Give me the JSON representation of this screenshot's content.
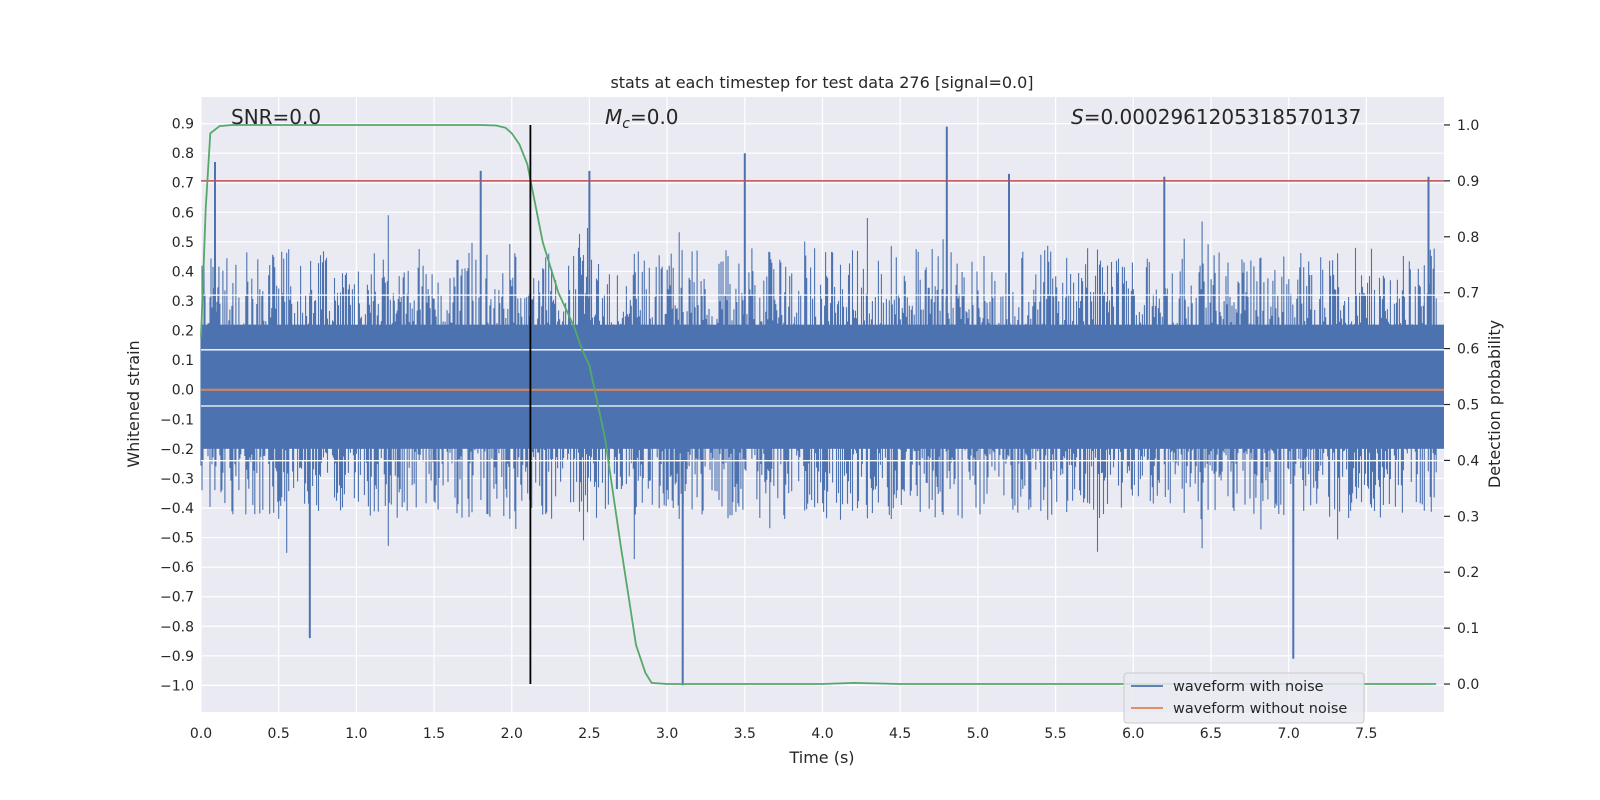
{
  "chart_data": {
    "type": "line",
    "title": "stats at each timestep for test data 276 [signal=0.0]",
    "xlabel": "Time (s)",
    "ylabel": "Whitened strain",
    "y2label": "Detection probability",
    "xlim": [
      0.0,
      8.0
    ],
    "ylim": [
      -1.09,
      0.99
    ],
    "y2lim": [
      -0.05,
      1.05
    ],
    "xticks": [
      "0.0",
      "0.5",
      "1.0",
      "1.5",
      "2.0",
      "2.5",
      "3.0",
      "3.5",
      "4.0",
      "4.5",
      "5.0",
      "5.5",
      "6.0",
      "6.5",
      "7.0",
      "7.5"
    ],
    "xtick_values": [
      0.0,
      0.5,
      1.0,
      1.5,
      2.0,
      2.5,
      3.0,
      3.5,
      4.0,
      4.5,
      5.0,
      5.5,
      6.0,
      6.5,
      7.0,
      7.5
    ],
    "yticks": [
      "0.9",
      "0.8",
      "0.7",
      "0.6",
      "0.5",
      "0.4",
      "0.3",
      "0.2",
      "0.1",
      "0.0",
      "−0.1",
      "−0.2",
      "−0.3",
      "−0.4",
      "−0.5",
      "−0.6",
      "−0.7",
      "−0.8",
      "−0.9",
      "−1.0"
    ],
    "ytick_values": [
      0.9,
      0.8,
      0.7,
      0.6,
      0.5,
      0.4,
      0.3,
      0.2,
      0.1,
      0.0,
      -0.1,
      -0.2,
      -0.3,
      -0.4,
      -0.5,
      -0.6,
      -0.7,
      -0.8,
      -0.9,
      -1.0
    ],
    "y2ticks": [
      "1.0",
      "0.9",
      "0.8",
      "0.7",
      "0.6",
      "0.5",
      "0.4",
      "0.3",
      "0.2",
      "0.1",
      "0.0"
    ],
    "y2tick_values": [
      1.0,
      0.9,
      0.8,
      0.7,
      0.6,
      0.5,
      0.4,
      0.3,
      0.2,
      0.1,
      0.0
    ],
    "annotations": {
      "snr": "SNR=0.0",
      "mc_symbol": "M",
      "mc_sub": "c",
      "mc_value": "=0.0",
      "s_symbol": "S",
      "s_value": "=0.0002961205318570137"
    },
    "series": [
      {
        "name": "waveform with noise",
        "color": "#4c72b0",
        "description": "dense whitened noise, roughly within ±0.5 with spikes",
        "spikes": [
          {
            "x": 0.09,
            "y": 0.77
          },
          {
            "x": 0.7,
            "y": -0.84
          },
          {
            "x": 1.8,
            "y": 0.74
          },
          {
            "x": 2.5,
            "y": 0.74
          },
          {
            "x": 3.1,
            "y": -1.0
          },
          {
            "x": 3.5,
            "y": 0.8
          },
          {
            "x": 4.8,
            "y": 0.89
          },
          {
            "x": 5.2,
            "y": 0.73
          },
          {
            "x": 6.2,
            "y": 0.72
          },
          {
            "x": 7.03,
            "y": -0.91
          },
          {
            "x": 7.9,
            "y": 0.72
          }
        ]
      },
      {
        "name": "waveform without noise",
        "color": "#dd8452",
        "y": 0.0
      },
      {
        "name": "detection probability",
        "color": "#55a868",
        "axis": "right",
        "x": [
          0.0,
          0.03,
          0.06,
          0.12,
          0.2,
          0.5,
          1.0,
          1.5,
          1.8,
          1.9,
          1.96,
          2.0,
          2.05,
          2.1,
          2.2,
          2.3,
          2.4,
          2.45,
          2.5,
          2.6,
          2.7,
          2.75,
          2.8,
          2.86,
          2.9,
          3.0,
          3.5,
          4.0,
          4.2,
          4.5,
          5.0,
          6.0,
          7.0,
          7.95
        ],
        "y": [
          0.62,
          0.85,
          0.985,
          0.998,
          1.0,
          1.0,
          1.0,
          1.0,
          1.0,
          0.999,
          0.995,
          0.985,
          0.965,
          0.93,
          0.79,
          0.7,
          0.64,
          0.6,
          0.57,
          0.44,
          0.25,
          0.16,
          0.07,
          0.02,
          0.002,
          0.0,
          0.0,
          0.0,
          0.002,
          0.0,
          0.0,
          0.0,
          0.0,
          0.0
        ]
      }
    ],
    "threshold": {
      "value": 0.9,
      "axis": "right",
      "color": "#c44e52"
    },
    "vline": {
      "x": 2.12,
      "color": "#000000"
    },
    "legend": {
      "position": "lower-right",
      "entries": [
        {
          "label": "waveform with noise",
          "color": "#4c72b0"
        },
        {
          "label": "waveform without noise",
          "color": "#dd8452"
        }
      ]
    }
  }
}
